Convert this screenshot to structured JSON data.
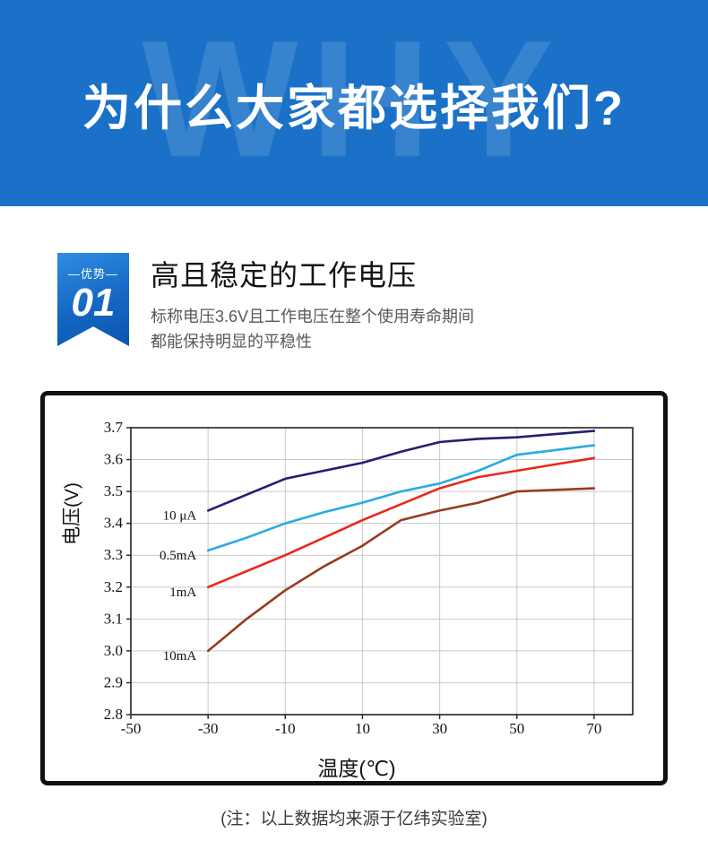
{
  "header": {
    "watermark": "WHY",
    "title": "为什么大家都选择我们?"
  },
  "advantage": {
    "badge_label": "—优势—",
    "badge_number": "01",
    "title": "高且稳定的工作电压",
    "desc_line1": "标称电压3.6V且工作电压在整个使用寿命期间",
    "desc_line2": "都能保持明显的平稳性"
  },
  "chart_data": {
    "type": "line",
    "title": "",
    "xlabel": "温度(℃)",
    "ylabel": "电压(V)",
    "xlim": [
      -50,
      80
    ],
    "ylim": [
      2.8,
      3.7
    ],
    "xticks": [
      -50,
      -30,
      -10,
      10,
      30,
      50,
      70
    ],
    "yticks": [
      2.8,
      2.9,
      3.0,
      3.1,
      3.2,
      3.3,
      3.4,
      3.5,
      3.6,
      3.7
    ],
    "grid": true,
    "x": [
      -30,
      -20,
      -10,
      0,
      10,
      20,
      30,
      40,
      50,
      60,
      70
    ],
    "series": [
      {
        "name": "10 μA",
        "color": "#221f72",
        "values": [
          3.44,
          3.49,
          3.54,
          3.565,
          3.59,
          3.625,
          3.655,
          3.665,
          3.67,
          3.68,
          3.69
        ]
      },
      {
        "name": "0.5mA",
        "color": "#29abe2",
        "values": [
          3.315,
          3.355,
          3.4,
          3.435,
          3.465,
          3.5,
          3.525,
          3.565,
          3.615,
          3.63,
          3.645
        ]
      },
      {
        "name": "1mA",
        "color": "#e8291c",
        "values": [
          3.2,
          3.25,
          3.3,
          3.355,
          3.41,
          3.46,
          3.51,
          3.545,
          3.565,
          3.585,
          3.605
        ]
      },
      {
        "name": "10mA",
        "color": "#963c1e",
        "values": [
          3.0,
          3.1,
          3.19,
          3.265,
          3.33,
          3.41,
          3.44,
          3.465,
          3.5,
          3.505,
          3.51
        ]
      }
    ]
  },
  "note": "(注：以上数据均来源于亿纬实验室)",
  "colors": {
    "header_blue": "#1a71c7",
    "badge_blue_light": "#2f8de2",
    "badge_blue_dark": "#0b55ad"
  }
}
